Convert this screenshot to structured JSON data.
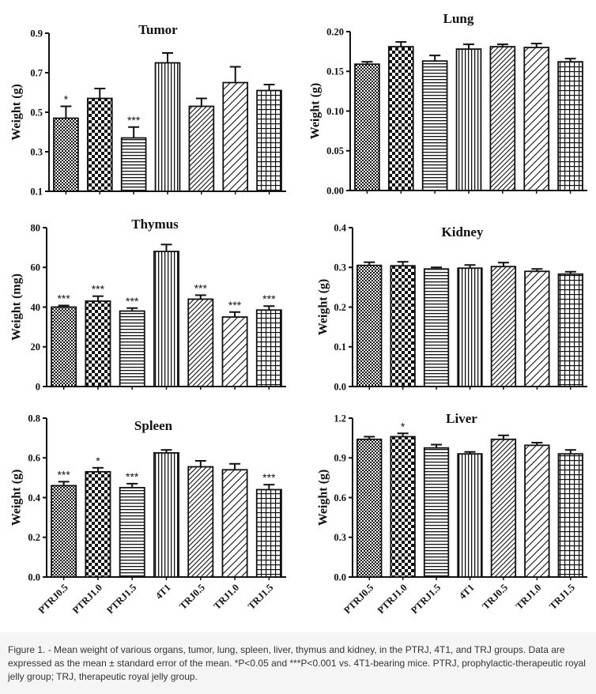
{
  "caption": "Figure 1. - Mean weight of various organs, tumor, lung, spleen, liver, thymus and kidney, in the PTRJ, 4T1, and TRJ groups. Data are expressed as the mean ± standard error of the mean. *P<0.05 and ***P<0.001 vs. 4T1-bearing mice. PTRJ, prophylactic-therapeutic royal jelly group; TRJ, therapeutic royal jelly group.",
  "chart_data": [
    {
      "type": "bar",
      "title": "Tumor",
      "ylabel": "Weight (g)",
      "ylim": [
        0.1,
        0.9
      ],
      "yticks": [
        "0.1",
        "0.3",
        "0.5",
        "0.7",
        "0.9"
      ],
      "categories": [
        "PTRJ0.5",
        "PTRJ1.0",
        "PTRJ1.5",
        "4T1",
        "TRJ0.5",
        "TRJ1.0",
        "TRJ1.5"
      ],
      "values": [
        0.47,
        0.57,
        0.37,
        0.75,
        0.53,
        0.65,
        0.61
      ],
      "errors": [
        0.06,
        0.05,
        0.055,
        0.05,
        0.04,
        0.08,
        0.03
      ],
      "significance": [
        "*",
        "",
        "***",
        "",
        "",
        "",
        ""
      ]
    },
    {
      "type": "bar",
      "title": "Lung",
      "ylabel": "Weight (g)",
      "ylim": [
        0.0,
        0.2
      ],
      "yticks": [
        "0.00",
        "0.05",
        "0.10",
        "0.15",
        "0.20"
      ],
      "categories": [
        "PTRJ0.5",
        "PTRJ1.0",
        "PTRJ1.5",
        "4T1",
        "TRJ0.5",
        "TRJ1.0",
        "TRJ1.5"
      ],
      "values": [
        0.159,
        0.181,
        0.163,
        0.178,
        0.181,
        0.18,
        0.162
      ],
      "errors": [
        0.003,
        0.006,
        0.007,
        0.006,
        0.003,
        0.005,
        0.004
      ],
      "significance": [
        "",
        "",
        "",
        "",
        "",
        "",
        ""
      ]
    },
    {
      "type": "bar",
      "title": "Thymus",
      "ylabel": "Weight  (mg)",
      "ylim": [
        0,
        80
      ],
      "yticks": [
        "0",
        "20",
        "40",
        "60",
        "80"
      ],
      "categories": [
        "PTRJ0.5",
        "PTRJ1.0",
        "PTRJ1.5",
        "4T1",
        "TRJ0.5",
        "TRJ1.0",
        "TRJ1.5"
      ],
      "values": [
        40,
        43,
        38,
        68,
        44,
        35,
        38.5
      ],
      "errors": [
        0.8,
        2.5,
        1.5,
        3.5,
        2,
        2.5,
        2
      ],
      "significance": [
        "***",
        "***",
        "***",
        "",
        "***",
        "***",
        "***"
      ]
    },
    {
      "type": "bar",
      "title": "Kidney",
      "ylabel": "Weight (g)",
      "ylim": [
        0.0,
        0.4
      ],
      "yticks": [
        "0.0",
        "0.1",
        "0.2",
        "0.3",
        "0.4"
      ],
      "categories": [
        "PTRJ0.5",
        "PTRJ1.0",
        "PTRJ1.5",
        "4T1",
        "TRJ0.5",
        "TRJ1.0",
        "TRJ1.5"
      ],
      "values": [
        0.305,
        0.304,
        0.296,
        0.298,
        0.302,
        0.29,
        0.283
      ],
      "errors": [
        0.008,
        0.01,
        0.004,
        0.008,
        0.01,
        0.006,
        0.006
      ],
      "significance": [
        "",
        "",
        "",
        "",
        "",
        "",
        ""
      ]
    },
    {
      "type": "bar",
      "title": "Spleen",
      "ylabel": "Weight (g)",
      "ylim": [
        0.0,
        0.8
      ],
      "yticks": [
        "0.0",
        "0.2",
        "0.4",
        "0.6",
        "0.8"
      ],
      "categories": [
        "PTRJ0.5",
        "PTRJ1.0",
        "PTRJ1.5",
        "4T1",
        "TRJ0.5",
        "TRJ1.0",
        "TRJ1.5"
      ],
      "values": [
        0.46,
        0.53,
        0.45,
        0.625,
        0.555,
        0.54,
        0.44
      ],
      "errors": [
        0.02,
        0.02,
        0.02,
        0.015,
        0.03,
        0.03,
        0.025
      ],
      "significance": [
        "***",
        "*",
        "***",
        "",
        "",
        "",
        "***"
      ]
    },
    {
      "type": "bar",
      "title": "Liver",
      "ylabel": "Weight (g)",
      "ylim": [
        0.0,
        1.2
      ],
      "yticks": [
        "0.0",
        "0.3",
        "0.6",
        "0.9",
        "1.2"
      ],
      "categories": [
        "PTRJ0.5",
        "PTRJ1.0",
        "PTRJ1.5",
        "4T1",
        "TRJ0.5",
        "TRJ1.0",
        "TRJ1.5"
      ],
      "values": [
        1.04,
        1.06,
        0.975,
        0.93,
        1.04,
        0.995,
        0.93
      ],
      "errors": [
        0.02,
        0.025,
        0.025,
        0.015,
        0.03,
        0.02,
        0.03
      ],
      "significance": [
        "",
        "*",
        "",
        "",
        "",
        "",
        ""
      ]
    }
  ]
}
